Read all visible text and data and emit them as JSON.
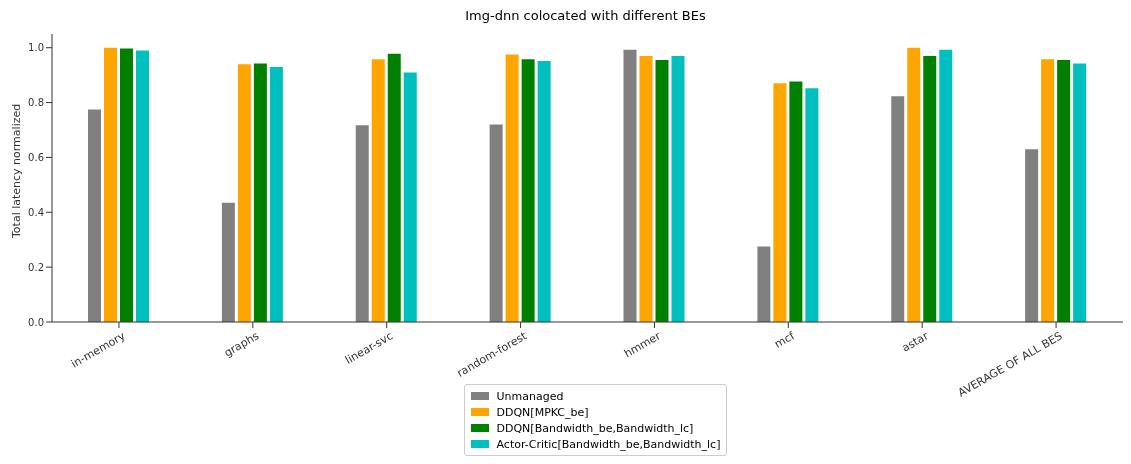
{
  "chart_data": {
    "type": "bar",
    "title": "Img-dnn colocated with different BEs",
    "ylabel": "Total latency normalized",
    "categories": [
      "in-memory",
      "graphs",
      "linear-svc",
      "random-forest",
      "hmmer",
      "mcf",
      "astar",
      "AVERAGE OF ALL BES"
    ],
    "series": [
      {
        "name": "Unmanaged",
        "color": "#808080",
        "values": [
          0.775,
          0.435,
          0.717,
          0.72,
          0.993,
          0.275,
          0.823,
          0.63
        ]
      },
      {
        "name": "DDQN[MPKC_be]",
        "color": "#ffa500",
        "values": [
          1.0,
          0.94,
          0.958,
          0.975,
          0.97,
          0.87,
          1.0,
          0.958
        ]
      },
      {
        "name": "DDQN[Bandwidth_be,Bandwidth_lc]",
        "color": "#008000",
        "values": [
          0.997,
          0.942,
          0.978,
          0.958,
          0.955,
          0.877,
          0.97,
          0.955
        ]
      },
      {
        "name": "Actor-Critic[Bandwidth_be,Bandwidth_lc]",
        "color": "#00bfbf",
        "values": [
          0.99,
          0.93,
          0.91,
          0.952,
          0.97,
          0.852,
          0.993,
          0.942
        ]
      }
    ],
    "ylim": [
      0,
      1.05
    ],
    "yticks": [
      {
        "value": 0,
        "label": "0.0"
      },
      {
        "value": 0.2,
        "label": "0.2"
      },
      {
        "value": 0.4,
        "label": "0.4"
      },
      {
        "value": 0.6,
        "label": "0.6"
      },
      {
        "value": 0.8,
        "label": "0.8"
      },
      {
        "value": 1,
        "label": "1.0"
      }
    ],
    "grid": false,
    "legend": "bottom"
  }
}
